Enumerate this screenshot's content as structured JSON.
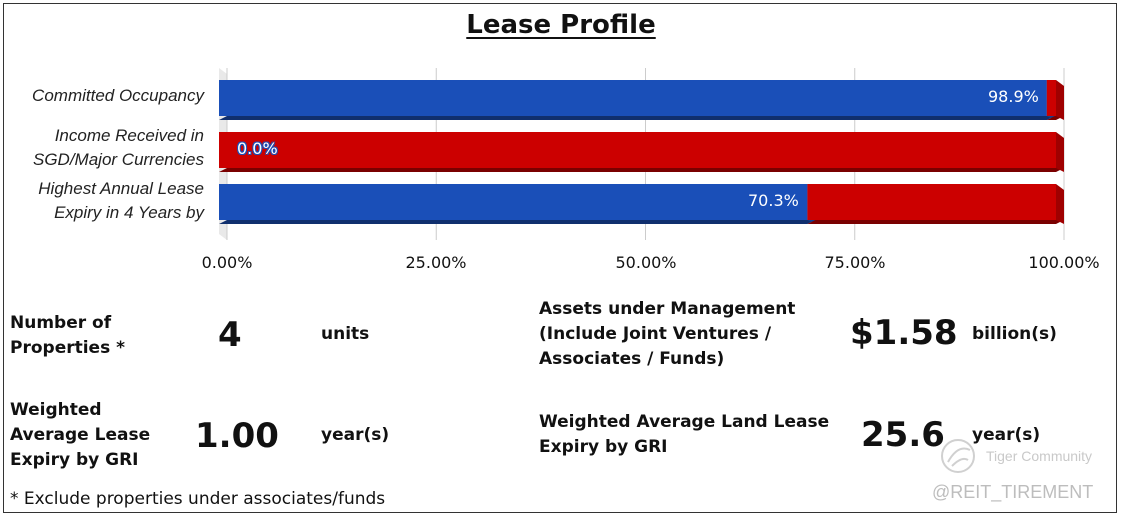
{
  "chart_data": {
    "type": "bar",
    "orientation": "horizontal",
    "stacked": true,
    "title": "Lease Profile",
    "categories": [
      [
        "Committed Occupancy"
      ],
      [
        "Income Received in",
        "SGD/Major Currencies"
      ],
      [
        "Highest Annual Lease",
        "Expiry in 4 Years by"
      ]
    ],
    "series": [
      {
        "color": "#1a4fb8",
        "values": [
          98.9,
          0.0,
          70.3
        ],
        "labels": [
          "98.9%",
          "0.0%",
          "70.3%"
        ]
      },
      {
        "color": "#cc0000",
        "values": [
          1.1,
          100.0,
          29.7
        ]
      }
    ],
    "xlim": [
      0,
      100
    ],
    "ticks": [
      0,
      25,
      50,
      75,
      100
    ],
    "tick_labels": [
      "0.00%",
      "25.00%",
      "50.00%",
      "75.00%",
      "100.00%"
    ],
    "grid": true,
    "legend": "none"
  },
  "metrics": {
    "properties": {
      "label": [
        "Number of",
        "Properties *"
      ],
      "value": "4",
      "unit": "units"
    },
    "aum": {
      "label": [
        "Assets under Management",
        "(Include Joint Ventures /",
        "Associates / Funds)"
      ],
      "value": "$1.58",
      "unit": "billion(s)"
    },
    "wale": {
      "label": [
        "Weighted",
        "Average Lease",
        "Expiry by GRI"
      ],
      "value": "1.00",
      "unit": "year(s)"
    },
    "land_lease": {
      "label": [
        "Weighted Average Land Lease",
        "Expiry by GRI"
      ],
      "value": "25.6",
      "unit": "year(s)"
    }
  },
  "footnote": "* Exclude properties under associates/funds",
  "watermark": {
    "brand": "Tiger Community",
    "handle": "@REIT_TIREMENT"
  },
  "colors": {
    "primary_bar": "#1a4fb8",
    "secondary_bar": "#cc0000",
    "grid": "#cccccc"
  }
}
